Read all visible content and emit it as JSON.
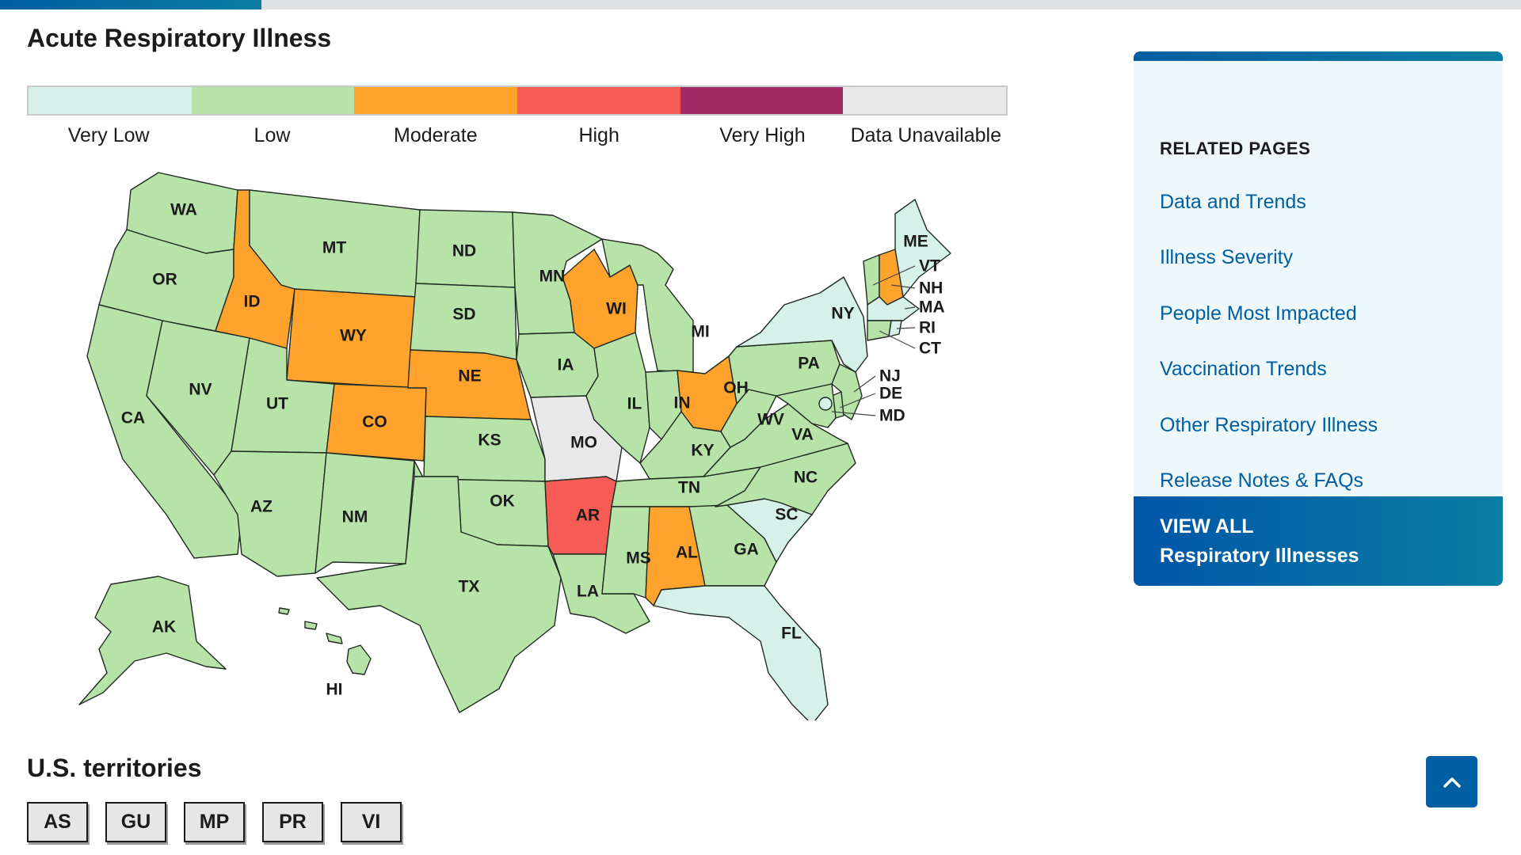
{
  "page": {
    "title": "Acute Respiratory Illness"
  },
  "legend": [
    {
      "label": "Very Low",
      "color": "#d6f0ea"
    },
    {
      "label": "Low",
      "color": "#b7e3a9"
    },
    {
      "label": "Moderate",
      "color": "#ffa32c"
    },
    {
      "label": "High",
      "color": "#f65b55"
    },
    {
      "label": "Very High",
      "color": "#a12b67"
    },
    {
      "label": "Data Unavailable",
      "color": "#e8e8e8"
    }
  ],
  "map": {
    "states": {
      "WA": "Low",
      "OR": "Low",
      "CA": "Low",
      "NV": "Low",
      "ID": "Moderate",
      "MT": "Low",
      "WY": "Moderate",
      "UT": "Low",
      "AZ": "Low",
      "CO": "Moderate",
      "NM": "Low",
      "ND": "Low",
      "SD": "Low",
      "NE": "Moderate",
      "KS": "Low",
      "OK": "Low",
      "TX": "Low",
      "MN": "Low",
      "IA": "Low",
      "MO": "Data Unavailable",
      "AR": "High",
      "LA": "Low",
      "WI": "Moderate",
      "IL": "Low",
      "MI": "Low",
      "IN": "Low",
      "OH": "Moderate",
      "KY": "Low",
      "TN": "Low",
      "MS": "Low",
      "AL": "Moderate",
      "GA": "Low",
      "FL": "Very Low",
      "SC": "Very Low",
      "NC": "Low",
      "VA": "Low",
      "WV": "Low",
      "PA": "Low",
      "NY": "Very Low",
      "ME": "Very Low",
      "VT": "Low",
      "NH": "Moderate",
      "MA": "Very Low",
      "RI": "Very Low",
      "CT": "Low",
      "NJ": "Low",
      "DE": "Low",
      "MD": "Low",
      "DC": "Very Low",
      "AK": "Low",
      "HI": "Low"
    },
    "labels": {
      "WA": "WA",
      "OR": "OR",
      "CA": "CA",
      "NV": "NV",
      "ID": "ID",
      "MT": "MT",
      "WY": "WY",
      "UT": "UT",
      "AZ": "AZ",
      "CO": "CO",
      "NM": "NM",
      "ND": "ND",
      "SD": "SD",
      "NE": "NE",
      "KS": "KS",
      "OK": "OK",
      "TX": "TX",
      "MN": "MN",
      "IA": "IA",
      "MO": "MO",
      "AR": "AR",
      "LA": "LA",
      "WI": "WI",
      "IL": "IL",
      "MI": "MI",
      "IN": "IN",
      "OH": "OH",
      "KY": "KY",
      "TN": "TN",
      "MS": "MS",
      "AL": "AL",
      "GA": "GA",
      "FL": "FL",
      "SC": "SC",
      "NC": "NC",
      "VA": "VA",
      "WV": "WV",
      "PA": "PA",
      "NY": "NY",
      "ME": "ME",
      "AK": "AK",
      "HI": "HI"
    },
    "callouts": {
      "VT": "VT",
      "NH": "NH",
      "MA": "MA",
      "RI": "RI",
      "CT": "CT",
      "NJ": "NJ",
      "DE": "DE",
      "MD": "MD"
    }
  },
  "territories": {
    "title": "U.S. territories",
    "items": [
      {
        "code": "AS",
        "status": "Data Unavailable"
      },
      {
        "code": "GU",
        "status": "Data Unavailable"
      },
      {
        "code": "MP",
        "status": "Data Unavailable"
      },
      {
        "code": "PR",
        "status": "Data Unavailable"
      },
      {
        "code": "VI",
        "status": "Data Unavailable"
      }
    ]
  },
  "related": {
    "heading": "RELATED PAGES",
    "links": [
      "Data and Trends",
      "Illness Severity",
      "People Most Impacted",
      "Vaccination Trends",
      "Other Respiratory Illness",
      "Release Notes & FAQs"
    ],
    "view_all_line1": "VIEW ALL",
    "view_all_line2": "Respiratory Illnesses"
  },
  "icons": {
    "back_to_top": "chevron-up-icon"
  }
}
